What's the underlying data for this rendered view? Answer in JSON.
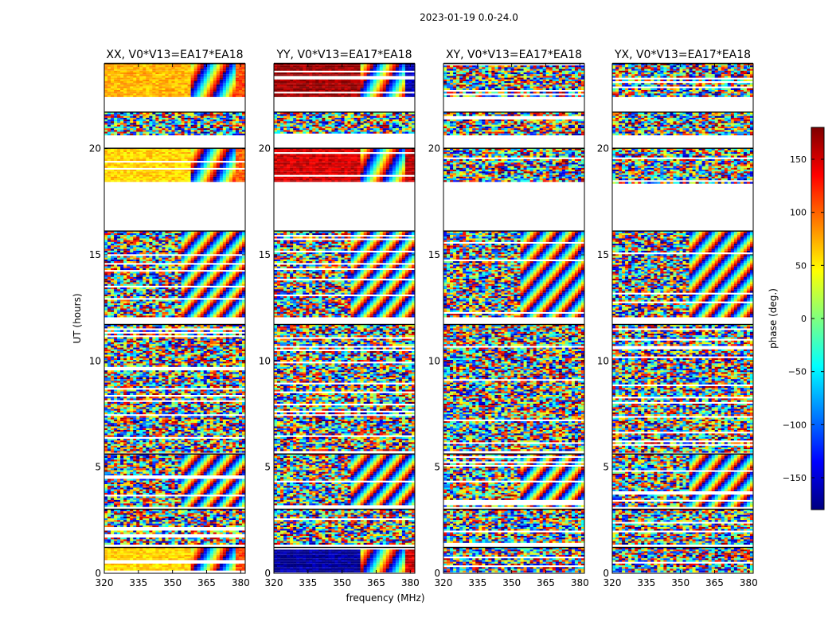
{
  "figure": {
    "suptitle": "2023-01-19 0.0-24.0",
    "ylabel": "UT (hours)",
    "xlabel": "frequency (MHz)"
  },
  "colorbar": {
    "label": "phase (deg.)",
    "range": [
      -180,
      180
    ],
    "ticks": [
      -150,
      -100,
      -50,
      0,
      50,
      100,
      150
    ],
    "tick_labels": [
      "−150",
      "−100",
      "−50",
      "0",
      "50",
      "100",
      "150"
    ],
    "colormap": "jet",
    "colors": [
      "#00007f",
      "#0000ff",
      "#007fff",
      "#00ffff",
      "#7fff7f",
      "#ffff00",
      "#ff7f00",
      "#ff0000",
      "#7f0000"
    ]
  },
  "chart_data": [
    {
      "type": "heatmap",
      "title": "XX, V0*V13=EA17*EA18",
      "xlabel": "",
      "ylabel": "UT (hours)",
      "xlim": [
        320,
        382
      ],
      "ylim": [
        0,
        24
      ],
      "xticks": [
        320,
        335,
        350,
        365,
        380
      ],
      "yticks": [
        0,
        5,
        10,
        15,
        20
      ],
      "value": "phase (deg.)",
      "bands": [
        {
          "ut": [
            0.0,
            1.2
          ],
          "phase_low_freq": 60,
          "phase_high_freq": 110,
          "style": "coherent"
        },
        {
          "ut": [
            1.3,
            3.0
          ],
          "style": "noise"
        },
        {
          "ut": [
            3.1,
            5.6
          ],
          "style": "fringes"
        },
        {
          "ut": [
            5.6,
            11.7
          ],
          "style": "noise"
        },
        {
          "ut": [
            12.0,
            16.1
          ],
          "style": "fringes"
        },
        {
          "ut": [
            18.3,
            20.0
          ],
          "phase_low_freq": 60,
          "phase_high_freq": 100,
          "style": "coherent"
        },
        {
          "ut": [
            20.6,
            21.7
          ],
          "style": "noise"
        },
        {
          "ut": [
            22.4,
            24.0
          ],
          "phase_low_freq": 70,
          "phase_high_freq": 110,
          "style": "coherent"
        }
      ]
    },
    {
      "type": "heatmap",
      "title": "YY, V0*V13=EA17*EA18",
      "xlabel": "frequency (MHz)",
      "ylabel": "",
      "xlim": [
        320,
        382
      ],
      "ylim": [
        0,
        24
      ],
      "xticks": [
        320,
        335,
        350,
        365,
        380
      ],
      "yticks": [
        0,
        5,
        10,
        15,
        20
      ],
      "value": "phase (deg.)",
      "bands": [
        {
          "ut": [
            0.0,
            1.2
          ],
          "phase_low_freq": -170,
          "phase_high_freq": 150,
          "style": "coherent"
        },
        {
          "ut": [
            1.3,
            3.0
          ],
          "style": "noise"
        },
        {
          "ut": [
            3.1,
            5.6
          ],
          "style": "fringes"
        },
        {
          "ut": [
            5.6,
            11.7
          ],
          "style": "noise"
        },
        {
          "ut": [
            12.0,
            16.1
          ],
          "style": "fringes"
        },
        {
          "ut": [
            18.3,
            20.0
          ],
          "phase_low_freq": 150,
          "phase_high_freq": 160,
          "style": "coherent"
        },
        {
          "ut": [
            20.6,
            21.7
          ],
          "style": "noise"
        },
        {
          "ut": [
            22.4,
            24.0
          ],
          "phase_low_freq": 170,
          "phase_high_freq": -160,
          "style": "coherent"
        }
      ]
    },
    {
      "type": "heatmap",
      "title": "XY, V0*V13=EA17*EA18",
      "xlabel": "",
      "ylabel": "",
      "xlim": [
        320,
        382
      ],
      "ylim": [
        0,
        24
      ],
      "xticks": [
        320,
        335,
        350,
        365,
        380
      ],
      "yticks": [
        0,
        5,
        10,
        15,
        20
      ],
      "value": "phase (deg.)",
      "bands": [
        {
          "ut": [
            0.0,
            1.2
          ],
          "style": "noise"
        },
        {
          "ut": [
            1.3,
            3.0
          ],
          "style": "noise"
        },
        {
          "ut": [
            3.1,
            5.6
          ],
          "style": "fringes"
        },
        {
          "ut": [
            5.6,
            11.7
          ],
          "style": "noise"
        },
        {
          "ut": [
            12.0,
            16.1
          ],
          "style": "fringes"
        },
        {
          "ut": [
            18.3,
            20.0
          ],
          "style": "noise"
        },
        {
          "ut": [
            20.6,
            21.7
          ],
          "style": "noise"
        },
        {
          "ut": [
            22.4,
            24.0
          ],
          "style": "noise"
        }
      ]
    },
    {
      "type": "heatmap",
      "title": "YX, V0*V13=EA17*EA18",
      "xlabel": "",
      "ylabel": "",
      "xlim": [
        320,
        382
      ],
      "ylim": [
        0,
        24
      ],
      "xticks": [
        320,
        335,
        350,
        365,
        380
      ],
      "yticks": [
        0,
        5,
        10,
        15,
        20
      ],
      "value": "phase (deg.)",
      "bands": [
        {
          "ut": [
            0.0,
            1.2
          ],
          "style": "noise"
        },
        {
          "ut": [
            1.3,
            3.0
          ],
          "style": "noise"
        },
        {
          "ut": [
            3.1,
            5.6
          ],
          "style": "fringes"
        },
        {
          "ut": [
            5.6,
            11.7
          ],
          "style": "noise"
        },
        {
          "ut": [
            12.0,
            16.1
          ],
          "style": "fringes"
        },
        {
          "ut": [
            18.3,
            20.0
          ],
          "style": "noise"
        },
        {
          "ut": [
            20.6,
            21.7
          ],
          "style": "noise"
        },
        {
          "ut": [
            22.4,
            24.0
          ],
          "style": "noise"
        }
      ]
    }
  ]
}
